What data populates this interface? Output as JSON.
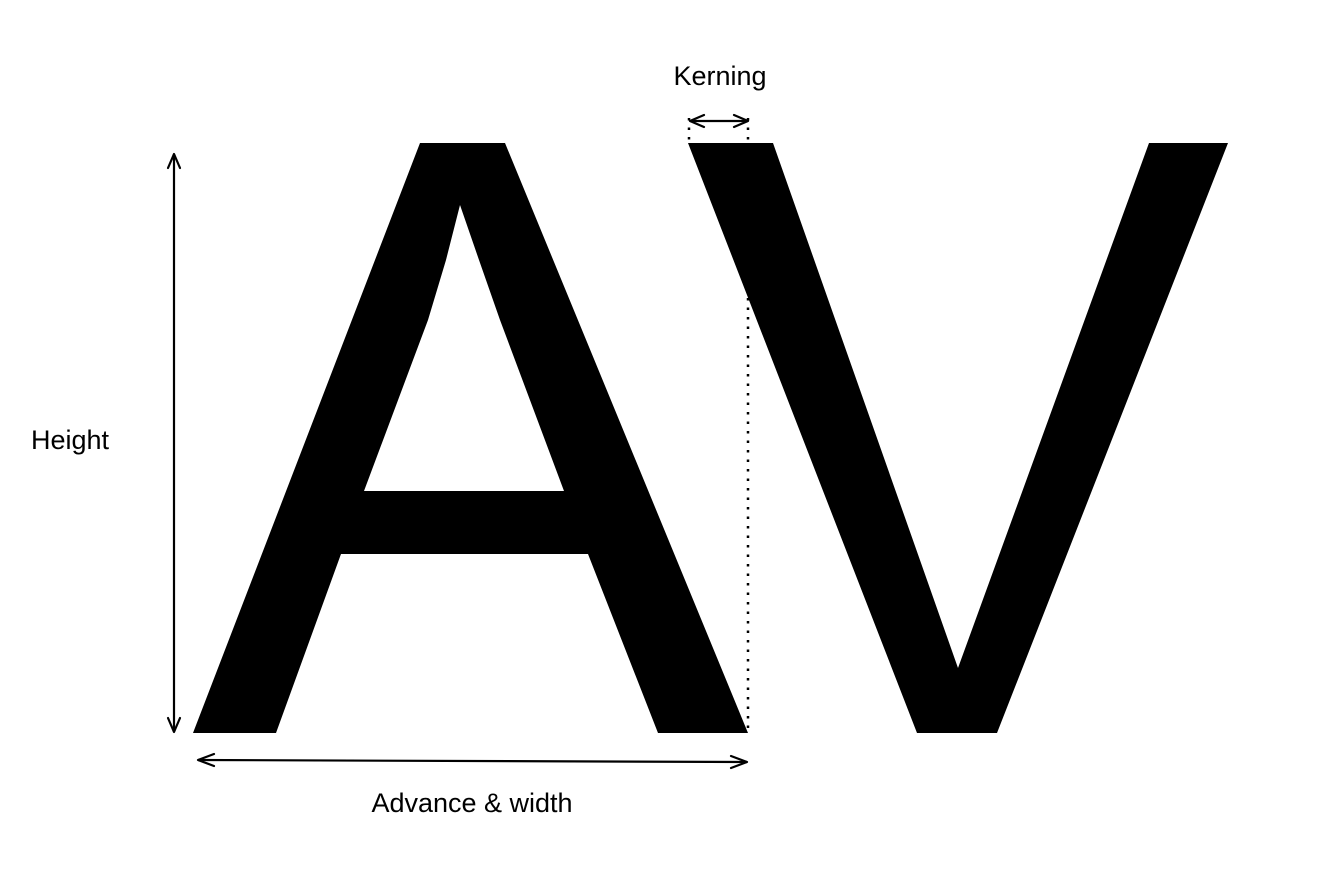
{
  "labels": {
    "kerning": "Kerning",
    "height": "Height",
    "advance_width": "Advance & width"
  },
  "glyphs": {
    "first": "A",
    "second": "V"
  },
  "colors": {
    "ink": "#000000",
    "background": "#ffffff"
  }
}
